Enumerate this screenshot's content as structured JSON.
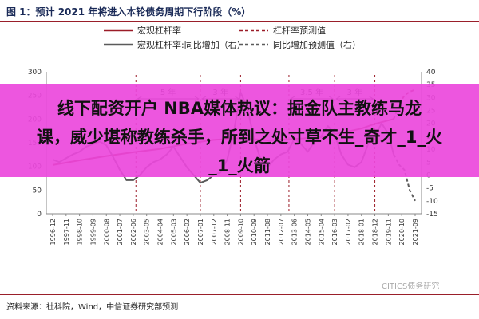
{
  "figure": {
    "title": "图 1：预计 2021 年将进入本轮债务周期下行阶段（%）",
    "source": "资料来源：社科院，Wind，中信证券研究部预测",
    "watermark": "CITICS债务研究"
  },
  "banner": {
    "line1": "线下配资开户 NBA媒体热议：掘金队主教练马龙",
    "line2": "课，威少堪称教练杀手，所到之处寸草不生_奇才_1_火",
    "line3": "_1_火箭"
  },
  "colors": {
    "left_series": "#9b1c28",
    "right_series": "#5b5b5b",
    "annotation": "#9b1c28"
  },
  "chart_data": {
    "type": "line",
    "legend": {
      "placement": "top",
      "entries": [
        "宏观杠杆率",
        "杠杆率预测值",
        "宏观杠杆率:同比增加（右）",
        "同比增加预测值（右）"
      ]
    },
    "y_left": {
      "range": [
        0,
        300
      ],
      "ticks": [
        0,
        50,
        100,
        150,
        200,
        250,
        300
      ]
    },
    "y_right": {
      "range": [
        -15,
        40
      ],
      "ticks": [
        -15,
        -10,
        -5,
        0,
        5,
        10,
        15,
        20,
        25,
        30,
        35,
        40
      ]
    },
    "x_labels": [
      "1996-12",
      "1997-11",
      "1998-10",
      "1999-09",
      "2000-08",
      "2001-07",
      "2002-06",
      "2003-05",
      "2004-04",
      "2005-03",
      "2006-02",
      "2007-01",
      "2007-12",
      "2008-11",
      "2009-10",
      "2010-09",
      "2011-08",
      "2012-07",
      "2013-06",
      "2014-05",
      "2015-04",
      "2016-03",
      "2017-02",
      "2018-01",
      "2018-12",
      "2019-11",
      "2020-10",
      "2021-09"
    ],
    "series": [
      {
        "name": "宏观杠杆率",
        "axis": "left",
        "style": "solid",
        "x": [
          0,
          2,
          4,
          6,
          8,
          10,
          12,
          14,
          16,
          18,
          20,
          21,
          22,
          23,
          24,
          25.4
        ],
        "y": [
          103,
          113,
          122,
          130,
          137,
          148,
          156,
          160,
          155,
          158,
          162,
          168,
          174,
          180,
          190,
          200
        ]
      },
      {
        "name": "杠杆率预测值",
        "axis": "left",
        "style": "dashed",
        "x": [
          25.4,
          25.8,
          26.2,
          26.6,
          27
        ],
        "y": [
          200,
          230,
          250,
          258,
          262
        ]
      },
      {
        "name": "宏观杠杆率:同比增加（右）",
        "axis": "right",
        "style": "solid",
        "x": [
          0,
          0.5,
          1,
          1.5,
          2,
          2.5,
          3,
          3.5,
          4,
          4.5,
          5,
          5.5,
          6,
          6.5,
          7,
          7.5,
          8,
          8.5,
          9,
          9.5,
          10,
          10.5,
          11,
          11.5,
          12,
          12.5,
          13,
          13.5,
          14,
          14.5,
          15,
          15.5,
          16,
          16.5,
          17,
          17.5,
          18,
          18.5,
          19,
          19.5,
          20,
          20.5,
          21,
          21.5,
          22,
          22.5,
          23,
          23.5,
          24,
          24.5,
          25,
          25.4
        ],
        "y": [
          6,
          5,
          6.5,
          8,
          9,
          11,
          12,
          13,
          11.5,
          7,
          2,
          -2,
          -2,
          0,
          3,
          5,
          6,
          8,
          11,
          7,
          3,
          0,
          -3,
          -2,
          0,
          1,
          6,
          17,
          32,
          26,
          14,
          6,
          3,
          6,
          8,
          9,
          14,
          12,
          9,
          13,
          15,
          19,
          16,
          8,
          4,
          3,
          5,
          12,
          15,
          20,
          16,
          8
        ]
      },
      {
        "name": "同比增加预测值（右）",
        "axis": "right",
        "style": "dashed",
        "x": [
          25.4,
          25.8,
          26.2,
          26.6,
          27
        ],
        "y": [
          8,
          4,
          2,
          -6,
          -10
        ]
      }
    ],
    "annotations": [
      {
        "text": "5 年",
        "x_from": 6.2,
        "x_to": 11
      },
      {
        "text": "3 年",
        "x_from": 11,
        "x_to": 14
      },
      {
        "text": "3.5 年",
        "x_from": 17.6,
        "x_to": 21
      },
      {
        "text": "3 年",
        "x_from": 21,
        "x_to": 24
      }
    ]
  }
}
